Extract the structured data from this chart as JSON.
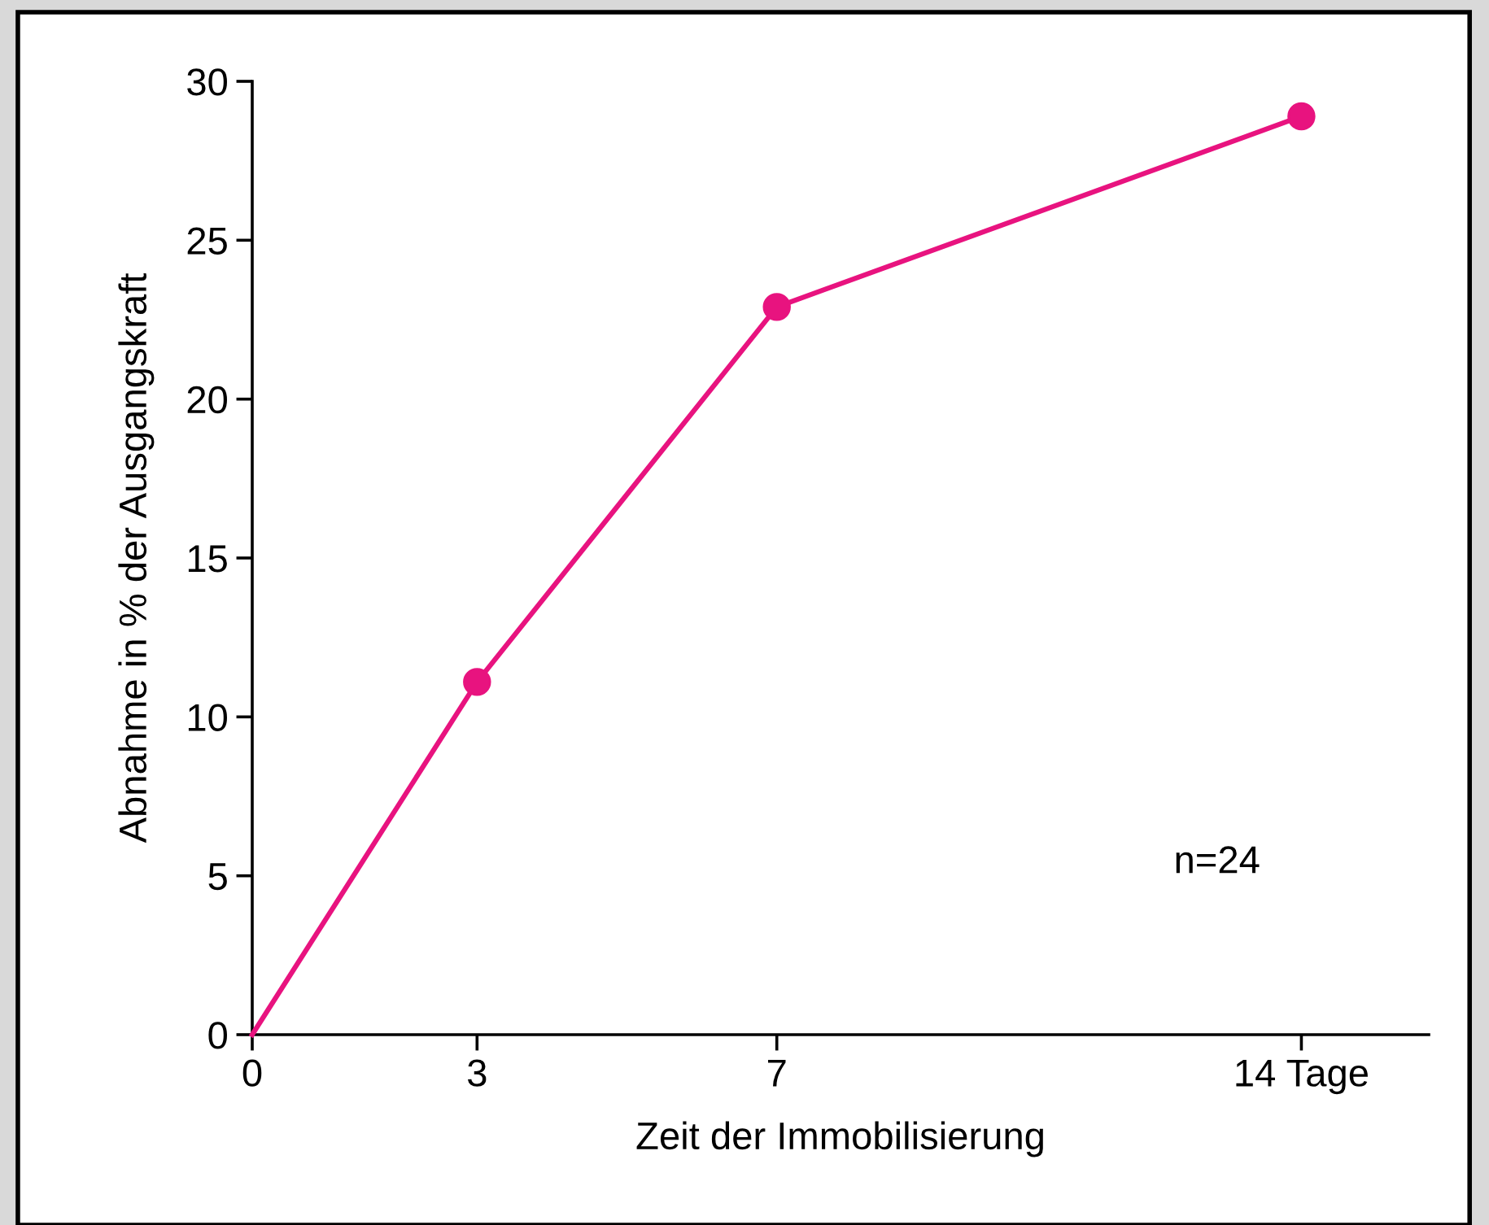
{
  "chart_data": {
    "type": "line",
    "xlabel": "Zeit der Immobilisierung",
    "ylabel": "Abnahme in % der Ausgangskraft",
    "annotations": [
      "n=24"
    ],
    "xlim": [
      0,
      15.7
    ],
    "xticks": [
      0,
      3,
      7,
      {
        "value": 14,
        "label": "14 Tage"
      }
    ],
    "ylim": [
      0,
      30
    ],
    "yticks": [
      0,
      5,
      10,
      15,
      20,
      25,
      30
    ],
    "grid": false,
    "legend": false,
    "series": [
      {
        "color": "#e8137f",
        "x": [
          0,
          3,
          7,
          14
        ],
        "values": [
          0,
          11.1,
          22.9,
          28.9
        ],
        "marker": "none",
        "line_style": "solid"
      },
      {
        "type": "scatter",
        "color": "#e8137f",
        "x": [
          3,
          7,
          14
        ],
        "values": [
          11.1,
          22.9,
          28.9
        ],
        "marker": "circle"
      }
    ]
  }
}
